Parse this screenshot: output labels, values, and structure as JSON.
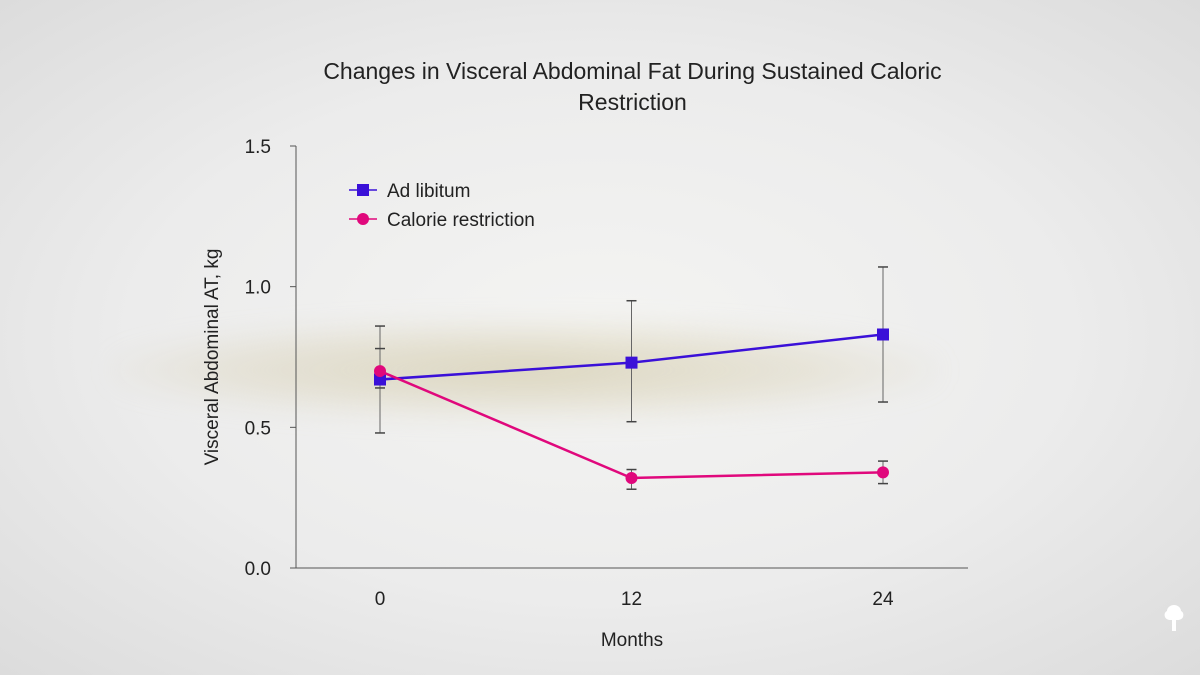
{
  "chart_data": {
    "type": "line",
    "title": "Changes in Visceral Abdominal Fat During Sustained Caloric Restriction",
    "xlabel": "Months",
    "ylabel": "Visceral Abdominal AT, kg",
    "x": [
      0,
      12,
      24
    ],
    "x_ticks": [
      "0",
      "12",
      "24"
    ],
    "y_ticks": [
      "0.0",
      "0.5",
      "1.0",
      "1.5"
    ],
    "ylim": [
      0,
      1.5
    ],
    "grid": false,
    "legend_position": "top-left",
    "series": [
      {
        "name": "Ad libitum",
        "color": "#3a10d8",
        "marker": "square",
        "values": [
          0.67,
          0.73,
          0.83
        ],
        "error_low": [
          0.48,
          0.52,
          0.59
        ],
        "error_high": [
          0.86,
          0.95,
          1.07
        ]
      },
      {
        "name": "Calorie restriction",
        "color": "#e0087c",
        "marker": "circle",
        "values": [
          0.7,
          0.32,
          0.34
        ],
        "error_low": [
          0.64,
          0.28,
          0.3
        ],
        "error_high": [
          0.78,
          0.35,
          0.38
        ]
      }
    ]
  },
  "logo": {
    "icon": "tree-icon",
    "color": "#ffffff"
  }
}
